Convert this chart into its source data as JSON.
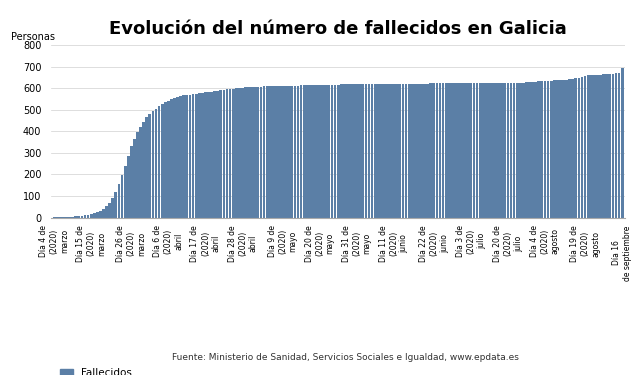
{
  "title": "Evolución del número de fallecidos en Galicia",
  "ylabel": "Personas",
  "bar_color": "#5b7fa6",
  "ylim": [
    0,
    800
  ],
  "yticks": [
    0,
    100,
    200,
    300,
    400,
    500,
    600,
    700,
    800
  ],
  "legend_label": "Fallecidos",
  "source_text": "Fuente: Ministerio de Sanidad, Servicios Sociales e Igualdad, www.epdata.es",
  "tick_labels": [
    "Día 4 de\n(2020)\nmarzo",
    "Día 15 de\n(2020)\nmarzo",
    "Día 26 de\n(2020)\nmarzo",
    "Día 6 de\n(2020)\nabril",
    "Día 17 de\n(2020)\nabril",
    "Día 28 de\n(2020)\nabril",
    "Día 9 de\n(2020)\nmayo",
    "Día 20 de\n(2020)\nmayo",
    "Día 31 de\n(2020)\nmayo",
    "Día 11 de\n(2020)\njunio",
    "Día 22 de\n(2020)\njunio",
    "Día 3 de\n(2020)\njulio",
    "Día 20 de\n(2020)\njulio",
    "Día 4 de\n(2020)\nagosto",
    "Día 19 de\n(2020)\nagosto",
    "Día 16\nde septiembre"
  ],
  "values": [
    1,
    1,
    2,
    2,
    3,
    3,
    4,
    5,
    6,
    8,
    10,
    13,
    16,
    20,
    25,
    32,
    40,
    52,
    68,
    90,
    120,
    155,
    195,
    240,
    285,
    330,
    365,
    395,
    420,
    445,
    465,
    480,
    495,
    505,
    515,
    525,
    535,
    542,
    548,
    555,
    560,
    563,
    566,
    568,
    570,
    572,
    574,
    576,
    578,
    580,
    582,
    584,
    586,
    588,
    590,
    592,
    594,
    596,
    598,
    600,
    601,
    602,
    603,
    604,
    605,
    606,
    607,
    607,
    608,
    608,
    609,
    609,
    610,
    610,
    610,
    611,
    611,
    611,
    612,
    612,
    613,
    613,
    613,
    614,
    614,
    614,
    615,
    615,
    615,
    615,
    616,
    616,
    616,
    617,
    617,
    617,
    617,
    618,
    618,
    618,
    618,
    618,
    619,
    619,
    619,
    619,
    619,
    620,
    620,
    620,
    620,
    620,
    620,
    620,
    620,
    621,
    621,
    621,
    621,
    621,
    621,
    621,
    622,
    622,
    622,
    622,
    622,
    622,
    622,
    622,
    622,
    622,
    622,
    622,
    622,
    622,
    622,
    622,
    622,
    622,
    622,
    622,
    622,
    622,
    622,
    622,
    622,
    622,
    622,
    623,
    624,
    625,
    626,
    627,
    628,
    629,
    630,
    631,
    632,
    633,
    634,
    635,
    636,
    637,
    638,
    639,
    640,
    641,
    643,
    645,
    648,
    651,
    655,
    659,
    660,
    661,
    662,
    663,
    664,
    665,
    666,
    667,
    668,
    670,
    695
  ],
  "title_fontsize": 13,
  "ylabel_fontsize": 7,
  "ytick_fontsize": 7,
  "xtick_fontsize": 5.5,
  "legend_fontsize": 7.5,
  "source_fontsize": 6.5
}
